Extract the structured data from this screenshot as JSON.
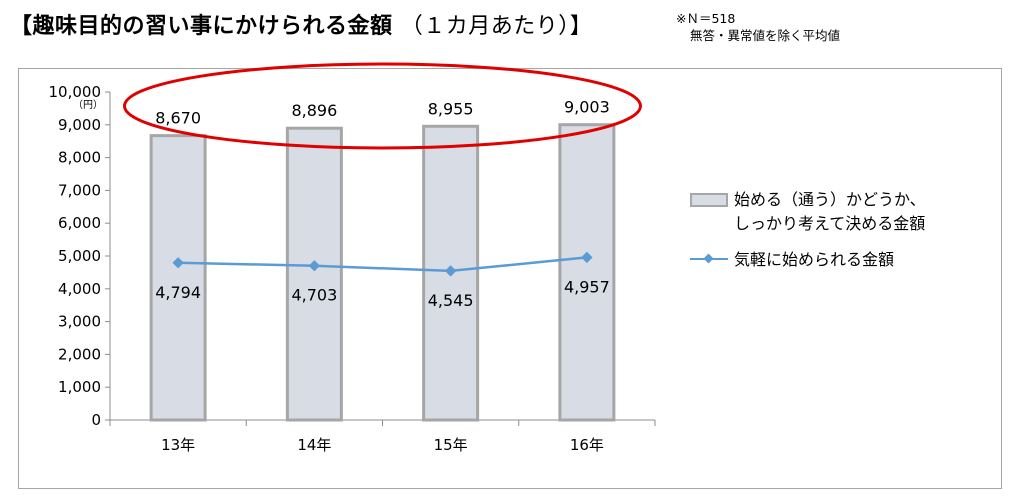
{
  "title": {
    "main": "【趣味目的の習い事にかけられる金額",
    "sub": "（１カ月あたり）】"
  },
  "note": {
    "line1": "※Ｎ＝518",
    "line2": "無答・異常値を除く平均値"
  },
  "colors": {
    "bar_fill": "#d7dce5",
    "bar_border": "#a6a6a6",
    "line": "#5b9bd5",
    "highlight_ellipse": "#e00000",
    "gridline": "#d9d9d9"
  },
  "chart_data": {
    "type": "bar",
    "categories": [
      "13年",
      "14年",
      "15年",
      "16年"
    ],
    "y_unit": "（円）",
    "ylim": [
      0,
      10000
    ],
    "y_ticks": [
      "0",
      "1,000",
      "2,000",
      "3,000",
      "4,000",
      "5,000",
      "6,000",
      "7,000",
      "8,000",
      "9,000",
      "10,000"
    ],
    "grid": false,
    "legend_position": "right",
    "series": [
      {
        "name": "始める（通う）かどうか、しっかり考えて決める金額",
        "type": "bar",
        "values": [
          8670,
          8896,
          8955,
          9003
        ],
        "labels": [
          "8,670",
          "8,896",
          "8,955",
          "9,003"
        ]
      },
      {
        "name": "気軽に始められる金額",
        "type": "line",
        "values": [
          4794,
          4703,
          4545,
          4957
        ],
        "labels": [
          "4,794",
          "4,703",
          "4,545",
          "4,957"
        ]
      }
    ]
  },
  "legend": {
    "bar_line1": "始める（通う）かどうか、",
    "bar_line2": "しっかり考えて決める金額",
    "line_label": "気軽に始められる金額"
  }
}
